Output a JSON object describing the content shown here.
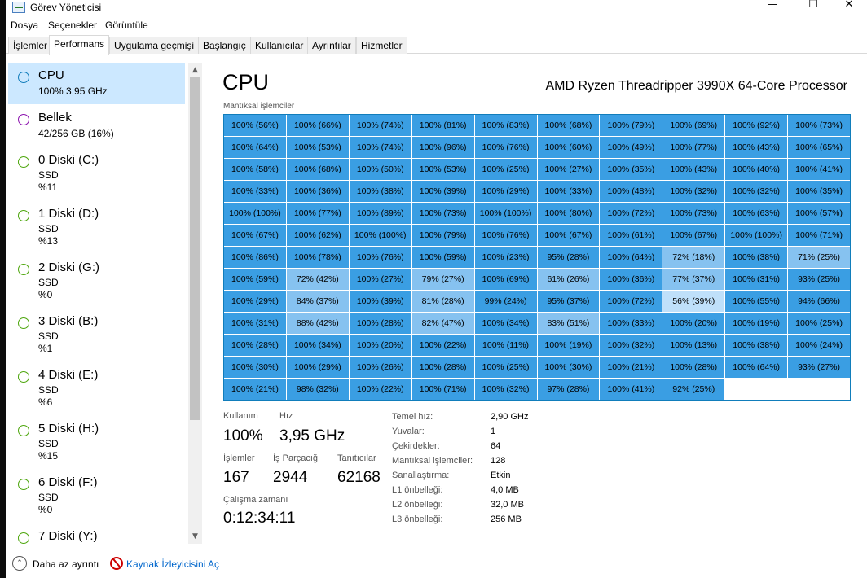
{
  "window": {
    "title": "Görev Yöneticisi",
    "minimize_glyph": "—",
    "maximize_glyph": "☐",
    "close_glyph": "✕"
  },
  "menu": [
    "Dosya",
    "Seçenekler",
    "Görüntüle"
  ],
  "tabs": [
    "İşlemler",
    "Performans",
    "Uygulama geçmişi",
    "Başlangıç",
    "Kullanıcılar",
    "Ayrıntılar",
    "Hizmetler"
  ],
  "active_tab": 1,
  "sidebar": [
    {
      "name": "CPU",
      "lines": [
        "100% 3,95 GHz"
      ],
      "color": "#117dbb",
      "selected": true
    },
    {
      "name": "Bellek",
      "lines": [
        "42/256 GB (16%)"
      ],
      "color": "#8b12ae",
      "selected": false
    },
    {
      "name": "0 Diski (C:)",
      "lines": [
        "SSD",
        "%11"
      ],
      "color": "#4da60c",
      "selected": false
    },
    {
      "name": "1 Diski (D:)",
      "lines": [
        "SSD",
        "%13"
      ],
      "color": "#4da60c",
      "selected": false
    },
    {
      "name": "2 Diski (G:)",
      "lines": [
        "SSD",
        "%0"
      ],
      "color": "#4da60c",
      "selected": false
    },
    {
      "name": "3 Diski (B:)",
      "lines": [
        "SSD",
        "%1"
      ],
      "color": "#4da60c",
      "selected": false
    },
    {
      "name": "4 Diski (E:)",
      "lines": [
        "SSD",
        "%6"
      ],
      "color": "#4da60c",
      "selected": false
    },
    {
      "name": "5 Diski (H:)",
      "lines": [
        "SSD",
        "%15"
      ],
      "color": "#4da60c",
      "selected": false
    },
    {
      "name": "6 Diski (F:)",
      "lines": [
        "SSD",
        "%0"
      ],
      "color": "#4da60c",
      "selected": false
    },
    {
      "name": "7 Diski (Y:)",
      "lines": [],
      "color": "#4da60c",
      "selected": false
    }
  ],
  "scroll": {
    "up_glyph": "▲",
    "down_glyph": "▼"
  },
  "main": {
    "title": "CPU",
    "model": "AMD Ryzen Threadripper 3990X 64-Core Processor",
    "grid_label": "Mantıksal işlemciler"
  },
  "cpu_cells": [
    "100% (56%)",
    "100% (66%)",
    "100% (74%)",
    "100% (81%)",
    "100% (83%)",
    "100% (68%)",
    "100% (79%)",
    "100% (69%)",
    "100% (92%)",
    "100% (73%)",
    "100% (64%)",
    "100% (53%)",
    "100% (74%)",
    "100% (96%)",
    "100% (76%)",
    "100% (60%)",
    "100% (49%)",
    "100% (77%)",
    "100% (43%)",
    "100% (65%)",
    "100% (58%)",
    "100% (68%)",
    "100% (50%)",
    "100% (53%)",
    "100% (25%)",
    "100% (27%)",
    "100% (35%)",
    "100% (43%)",
    "100% (40%)",
    "100% (41%)",
    "100% (33%)",
    "100% (36%)",
    "100% (38%)",
    "100% (39%)",
    "100% (29%)",
    "100% (33%)",
    "100% (48%)",
    "100% (32%)",
    "100% (32%)",
    "100% (35%)",
    "100% (100%)",
    "100% (77%)",
    "100% (89%)",
    "100% (73%)",
    "100% (100%)",
    "100% (80%)",
    "100% (72%)",
    "100% (73%)",
    "100% (63%)",
    "100% (57%)",
    "100% (67%)",
    "100% (62%)",
    "100% (100%)",
    "100% (79%)",
    "100% (76%)",
    "100% (67%)",
    "100% (61%)",
    "100% (67%)",
    "100% (100%)",
    "100% (71%)",
    "100% (86%)",
    "100% (78%)",
    "100% (76%)",
    "100% (59%)",
    "100% (23%)",
    "95% (28%)",
    "100% (64%)",
    "72% (18%)",
    "100% (38%)",
    "71% (25%)",
    "100% (59%)",
    "72% (42%)",
    "100% (27%)",
    "79% (27%)",
    "100% (69%)",
    "61% (26%)",
    "100% (36%)",
    "77% (37%)",
    "100% (31%)",
    "93% (25%)",
    "100% (29%)",
    "84% (37%)",
    "100% (39%)",
    "81% (28%)",
    "99% (24%)",
    "95% (37%)",
    "100% (72%)",
    "56% (39%)",
    "100% (55%)",
    "94% (66%)",
    "100% (31%)",
    "88% (42%)",
    "100% (28%)",
    "82% (47%)",
    "100% (34%)",
    "83% (51%)",
    "100% (33%)",
    "100% (20%)",
    "100% (19%)",
    "100% (25%)",
    "100% (28%)",
    "100% (34%)",
    "100% (20%)",
    "100% (22%)",
    "100% (11%)",
    "100% (19%)",
    "100% (32%)",
    "100% (13%)",
    "100% (38%)",
    "100% (24%)",
    "100% (30%)",
    "100% (29%)",
    "100% (26%)",
    "100% (28%)",
    "100% (25%)",
    "100% (30%)",
    "100% (21%)",
    "100% (28%)",
    "100% (64%)",
    "93% (27%)",
    "100% (21%)",
    "98% (32%)",
    "100% (22%)",
    "100% (71%)",
    "100% (32%)",
    "97% (28%)",
    "100% (41%)",
    "92% (25%)",
    "",
    ""
  ],
  "stats": {
    "usage_label": "Kullanım",
    "usage_value": "100%",
    "speed_label": "Hız",
    "speed_value": "3,95 GHz",
    "processes_label": "İşlemler",
    "processes_value": "167",
    "threads_label": "İş Parçacığı",
    "threads_value": "2944",
    "handles_label": "Tanıtıcılar",
    "handles_value": "62168",
    "uptime_label": "Çalışma zamanı",
    "uptime_value": "0:12:34:11"
  },
  "info": [
    {
      "key": "Temel hız:",
      "value": "2,90 GHz"
    },
    {
      "key": "Yuvalar:",
      "value": "1"
    },
    {
      "key": "Çekirdekler:",
      "value": "64"
    },
    {
      "key": "Mantıksal işlemciler:",
      "value": "128"
    },
    {
      "key": "Sanallaştırma:",
      "value": "Etkin"
    },
    {
      "key": "L1 önbelleği:",
      "value": "4,0 MB"
    },
    {
      "key": "L2 önbelleği:",
      "value": "32,0 MB"
    },
    {
      "key": "L3 önbelleği:",
      "value": "256 MB"
    }
  ],
  "footer": {
    "fewer_details": "Daha az ayrıntı",
    "fewer_glyph": "⌃",
    "resource_monitor": "Kaynak İzleyicisini Aç"
  }
}
